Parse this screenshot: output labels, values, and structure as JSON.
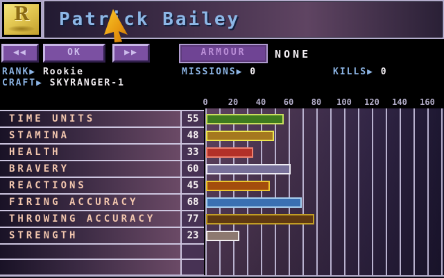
{
  "header": {
    "name": "Patrick Bailey",
    "badge_letter": "R"
  },
  "toolbar": {
    "prev_label": "◀◀",
    "ok_label": "OK",
    "next_label": "▶▶",
    "armour_label": "ARMOUR",
    "armour_value": "NONE"
  },
  "info": {
    "rank_label": "RANK▶",
    "rank_value": "Rookie",
    "craft_label": "CRAFT▶",
    "craft_value": "SKYRANGER-1",
    "missions_label": "MISSIONS▶",
    "missions_value": "0",
    "kills_label": "KILLS▶",
    "kills_value": "0"
  },
  "chart_data": {
    "type": "bar",
    "orientation": "horizontal",
    "categories": [
      "TIME UNITS",
      "STAMINA",
      "HEALTH",
      "BRAVERY",
      "REACTIONS",
      "FIRING ACCURACY",
      "THROWING ACCURACY",
      "STRENGTH"
    ],
    "values": [
      55,
      48,
      33,
      60,
      45,
      68,
      77,
      23
    ],
    "xlim": [
      0,
      160
    ],
    "ticks": [
      "0",
      "20",
      "40",
      "60",
      "80",
      "100",
      "120",
      "140",
      "160"
    ],
    "grid": "vertical lines every 10 units",
    "bar_colors": [
      {
        "fill": "#3e7a1e",
        "border": "#c8de5e"
      },
      {
        "fill": "#a5781f",
        "border": "#ece64e"
      },
      {
        "fill": "#b23028",
        "border": "#ef8270"
      },
      {
        "fill": "#777099",
        "border": "#eeecf4"
      },
      {
        "fill": "#a34d0d",
        "border": "#ecc72e"
      },
      {
        "fill": "#3a70b2",
        "border": "#a8cfee"
      },
      {
        "fill": "#5f3911",
        "border": "#c19d24"
      },
      {
        "fill": "#8d7970",
        "border": "#f2eef0"
      }
    ]
  },
  "colors": {
    "button_purple": "#7b50a2",
    "panel_lavender": "#b4accc",
    "name_blue": "#8db7e6",
    "label_pink": "#f2c6ae",
    "info_blue": "#8cb4e4"
  }
}
